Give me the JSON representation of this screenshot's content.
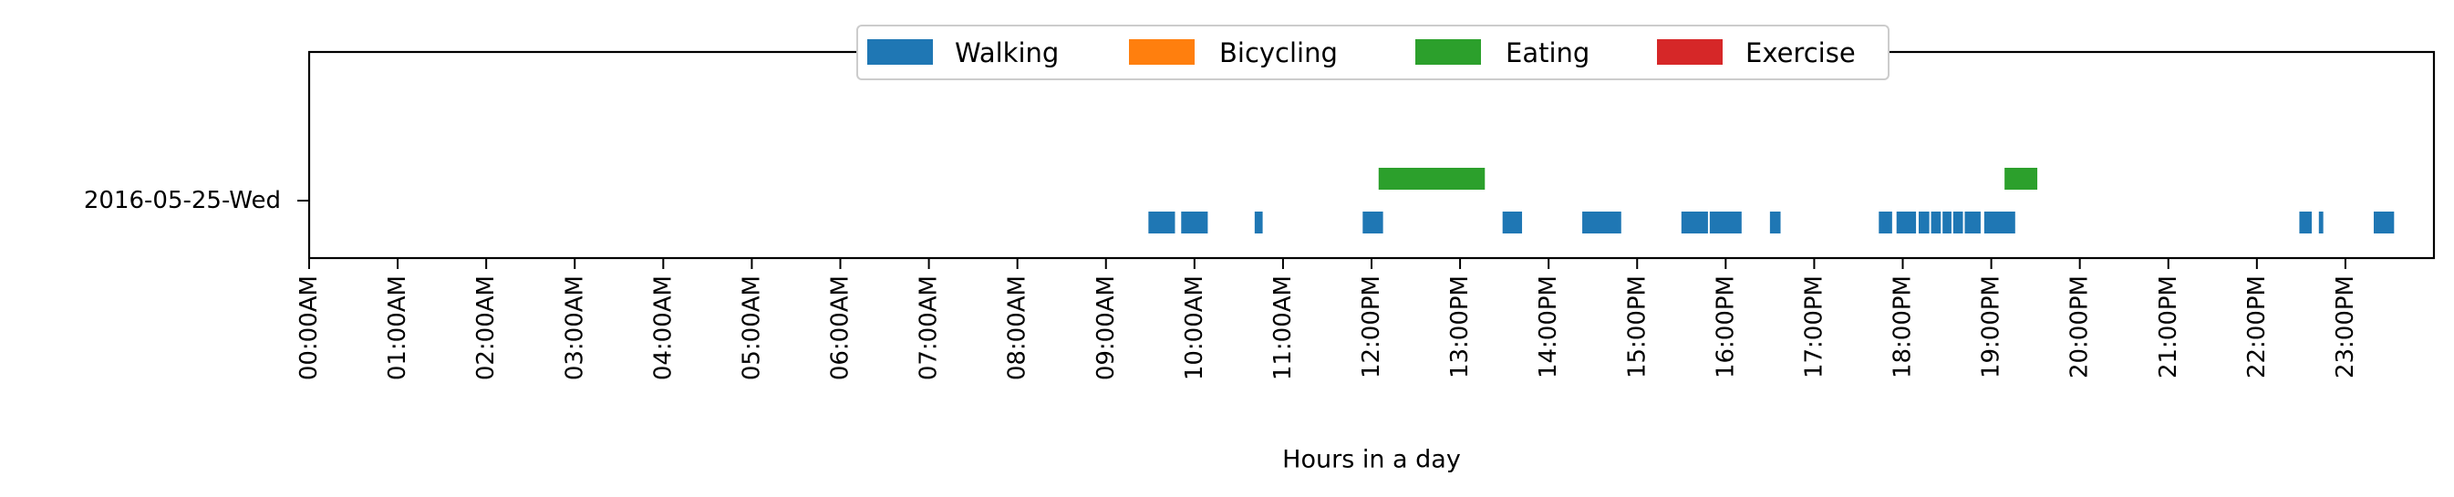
{
  "chart_data": {
    "type": "timeline",
    "title": "",
    "xlabel": "Hours in a day",
    "ylabel": "",
    "xlim": [
      0,
      24
    ],
    "x_ticks": [
      {
        "value": 0,
        "label": "00:00AM"
      },
      {
        "value": 1,
        "label": "01:00AM"
      },
      {
        "value": 2,
        "label": "02:00AM"
      },
      {
        "value": 3,
        "label": "03:00AM"
      },
      {
        "value": 4,
        "label": "04:00AM"
      },
      {
        "value": 5,
        "label": "05:00AM"
      },
      {
        "value": 6,
        "label": "06:00AM"
      },
      {
        "value": 7,
        "label": "07:00AM"
      },
      {
        "value": 8,
        "label": "08:00AM"
      },
      {
        "value": 9,
        "label": "09:00AM"
      },
      {
        "value": 10,
        "label": "10:00AM"
      },
      {
        "value": 11,
        "label": "11:00AM"
      },
      {
        "value": 12,
        "label": "12:00PM"
      },
      {
        "value": 13,
        "label": "13:00PM"
      },
      {
        "value": 14,
        "label": "14:00PM"
      },
      {
        "value": 15,
        "label": "15:00PM"
      },
      {
        "value": 16,
        "label": "16:00PM"
      },
      {
        "value": 17,
        "label": "17:00PM"
      },
      {
        "value": 18,
        "label": "18:00PM"
      },
      {
        "value": 19,
        "label": "19:00PM"
      },
      {
        "value": 20,
        "label": "20:00PM"
      },
      {
        "value": 21,
        "label": "21:00PM"
      },
      {
        "value": 22,
        "label": "22:00PM"
      },
      {
        "value": 23,
        "label": "23:00PM"
      }
    ],
    "y_category": "2016-05-25-Wed",
    "legend_position": "top-center",
    "grid": false,
    "series": [
      {
        "name": "Walking",
        "color": "#1f77b4",
        "lane": -1,
        "segments": [
          [
            9.48,
            9.78
          ],
          [
            9.85,
            10.15
          ],
          [
            10.68,
            10.77
          ],
          [
            11.9,
            12.13
          ],
          [
            13.48,
            13.7
          ],
          [
            14.38,
            14.82
          ],
          [
            15.5,
            15.8
          ],
          [
            15.82,
            16.18
          ],
          [
            16.5,
            16.62
          ],
          [
            17.73,
            17.88
          ],
          [
            17.93,
            18.15
          ],
          [
            18.18,
            18.3
          ],
          [
            18.32,
            18.43
          ],
          [
            18.45,
            18.55
          ],
          [
            18.57,
            18.68
          ],
          [
            18.7,
            18.88
          ],
          [
            18.92,
            19.27
          ],
          [
            22.48,
            22.62
          ],
          [
            22.7,
            22.75
          ],
          [
            23.32,
            23.55
          ]
        ]
      },
      {
        "name": "Bicycling",
        "color": "#ff7f0e",
        "lane": 0,
        "segments": []
      },
      {
        "name": "Eating",
        "color": "#2ca02c",
        "lane": 1,
        "segments": [
          [
            12.08,
            13.28
          ],
          [
            19.15,
            19.52
          ]
        ]
      },
      {
        "name": "Exercise",
        "color": "#d62728",
        "lane": 0,
        "segments": []
      }
    ]
  }
}
